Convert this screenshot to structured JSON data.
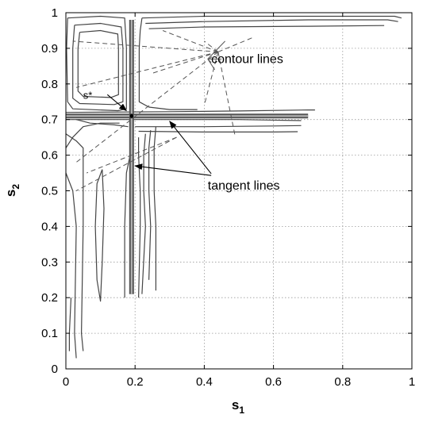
{
  "chart_data": {
    "type": "line",
    "title": "",
    "xlabel": "s",
    "xlabel_sub": "1",
    "ylabel": "s",
    "ylabel_sub": "2",
    "xlim": [
      0,
      1
    ],
    "ylim": [
      0,
      1
    ],
    "grid": true,
    "x_ticks": [
      0,
      0.2,
      0.4,
      0.6,
      0.8,
      1
    ],
    "x_tick_labels": [
      "0",
      "0.2",
      "0.4",
      "0.6",
      "0.8",
      "1"
    ],
    "y_ticks": [
      0,
      0.1,
      0.2,
      0.3,
      0.4,
      0.5,
      0.6,
      0.7,
      0.8,
      0.9,
      1
    ],
    "y_tick_labels": [
      "0",
      "0.1",
      "0.2",
      "0.3",
      "0.4",
      "0.5",
      "0.6",
      "0.7",
      "0.8",
      "0.9",
      "1"
    ],
    "minimum_point": {
      "label": "s*",
      "x": 0.19,
      "y": 0.71
    },
    "tangent_lines": [
      {
        "orientation": "vertical",
        "x": 0.19,
        "y_range": [
          0.21,
          0.98
        ]
      },
      {
        "orientation": "horizontal",
        "y": 0.71,
        "x_range": [
          0.0,
          0.7
        ]
      }
    ],
    "contour_lines": [
      {
        "points": [
          [
            0.22,
            0.985
          ],
          [
            0.4,
            0.99
          ],
          [
            0.7,
            0.99
          ],
          [
            0.95,
            0.99
          ],
          [
            0.97,
            0.985
          ]
        ]
      },
      {
        "points": [
          [
            0.23,
            0.97
          ],
          [
            0.4,
            0.975
          ],
          [
            0.7,
            0.98
          ],
          [
            0.93,
            0.98
          ],
          [
            0.96,
            0.975
          ]
        ]
      },
      {
        "points": [
          [
            0.24,
            0.955
          ],
          [
            0.4,
            0.96
          ],
          [
            0.7,
            0.962
          ],
          [
            0.92,
            0.964
          ]
        ]
      },
      {
        "points": [
          [
            0.0,
            0.72
          ],
          [
            0.3,
            0.722
          ],
          [
            0.5,
            0.724
          ],
          [
            0.7,
            0.727
          ],
          [
            0.72,
            0.727
          ]
        ]
      },
      {
        "points": [
          [
            0.0,
            0.7
          ],
          [
            0.3,
            0.7
          ],
          [
            0.5,
            0.7
          ],
          [
            0.68,
            0.697
          ]
        ]
      },
      {
        "points": [
          [
            0.2,
            0.68
          ],
          [
            0.4,
            0.68
          ],
          [
            0.6,
            0.682
          ],
          [
            0.68,
            0.683
          ]
        ]
      },
      {
        "points": [
          [
            0.21,
            0.667
          ],
          [
            0.4,
            0.665
          ],
          [
            0.6,
            0.665
          ],
          [
            0.67,
            0.666
          ]
        ]
      },
      {
        "points": [
          [
            0.005,
            0.985
          ],
          [
            0.1,
            0.99
          ],
          [
            0.17,
            0.985
          ],
          [
            0.175,
            0.9
          ],
          [
            0.175,
            0.73
          ],
          [
            0.15,
            0.725
          ],
          [
            0.02,
            0.73
          ],
          [
            0.005,
            0.75
          ],
          [
            0.002,
            0.9
          ],
          [
            0.005,
            0.985
          ]
        ]
      },
      {
        "points": [
          [
            0.025,
            0.965
          ],
          [
            0.1,
            0.97
          ],
          [
            0.16,
            0.96
          ],
          [
            0.165,
            0.9
          ],
          [
            0.165,
            0.75
          ],
          [
            0.14,
            0.742
          ],
          [
            0.04,
            0.745
          ],
          [
            0.02,
            0.76
          ],
          [
            0.02,
            0.9
          ],
          [
            0.025,
            0.965
          ]
        ]
      },
      {
        "points": [
          [
            0.04,
            0.945
          ],
          [
            0.1,
            0.95
          ],
          [
            0.15,
            0.94
          ],
          [
            0.152,
            0.9
          ],
          [
            0.152,
            0.77
          ],
          [
            0.13,
            0.762
          ],
          [
            0.05,
            0.765
          ],
          [
            0.035,
            0.78
          ],
          [
            0.035,
            0.9
          ],
          [
            0.04,
            0.945
          ]
        ]
      },
      {
        "points": [
          [
            0.22,
            0.985
          ],
          [
            0.215,
            0.95
          ],
          [
            0.212,
            0.9
          ],
          [
            0.212,
            0.75
          ],
          [
            0.24,
            0.735
          ],
          [
            0.3,
            0.728
          ],
          [
            0.38,
            0.728
          ]
        ]
      },
      {
        "points": [
          [
            0.0,
            0.66
          ],
          [
            0.03,
            0.64
          ],
          [
            0.05,
            0.62
          ],
          [
            0.05,
            0.4
          ],
          [
            0.045,
            0.1
          ],
          [
            0.05,
            0.05
          ]
        ]
      },
      {
        "points": [
          [
            0.0,
            0.55
          ],
          [
            0.02,
            0.5
          ],
          [
            0.03,
            0.4
          ],
          [
            0.025,
            0.1
          ],
          [
            0.03,
            0.03
          ]
        ]
      },
      {
        "points": [
          [
            0.015,
            0.2
          ],
          [
            0.01,
            0.1
          ],
          [
            0.01,
            0.05
          ]
        ]
      },
      {
        "points": [
          [
            0.105,
            0.56
          ],
          [
            0.11,
            0.45
          ],
          [
            0.105,
            0.3
          ],
          [
            0.1,
            0.19
          ],
          [
            0.09,
            0.25
          ],
          [
            0.085,
            0.4
          ],
          [
            0.09,
            0.52
          ],
          [
            0.105,
            0.56
          ]
        ]
      },
      {
        "points": [
          [
            0.19,
            0.62
          ],
          [
            0.175,
            0.55
          ],
          [
            0.17,
            0.4
          ],
          [
            0.17,
            0.2
          ]
        ]
      },
      {
        "points": [
          [
            0.21,
            0.65
          ],
          [
            0.21,
            0.6
          ],
          [
            0.215,
            0.5
          ],
          [
            0.215,
            0.4
          ],
          [
            0.21,
            0.2
          ]
        ]
      },
      {
        "points": [
          [
            0.23,
            0.66
          ],
          [
            0.225,
            0.6
          ],
          [
            0.225,
            0.5
          ],
          [
            0.23,
            0.4
          ],
          [
            0.22,
            0.21
          ]
        ]
      },
      {
        "points": [
          [
            0.245,
            0.67
          ],
          [
            0.24,
            0.62
          ],
          [
            0.24,
            0.5
          ],
          [
            0.245,
            0.4
          ],
          [
            0.24,
            0.25
          ]
        ]
      },
      {
        "points": [
          [
            0.26,
            0.68
          ],
          [
            0.255,
            0.62
          ],
          [
            0.255,
            0.5
          ],
          [
            0.26,
            0.4
          ],
          [
            0.26,
            0.22
          ]
        ]
      },
      {
        "points": [
          [
            0.155,
            0.69
          ],
          [
            0.1,
            0.69
          ],
          [
            0.05,
            0.68
          ],
          [
            0.02,
            0.65
          ],
          [
            0.0,
            0.62
          ]
        ]
      },
      {
        "points": [
          [
            0.03,
            0.7
          ],
          [
            0.07,
            0.69
          ],
          [
            0.14,
            0.685
          ],
          [
            0.18,
            0.68
          ]
        ]
      }
    ],
    "leader_lines": [
      {
        "style": "dashed",
        "points": [
          [
            0.44,
            0.89
          ],
          [
            0.02,
            0.92
          ]
        ]
      },
      {
        "style": "dashed",
        "points": [
          [
            0.44,
            0.89
          ],
          [
            0.28,
            0.95
          ]
        ]
      },
      {
        "style": "dashed",
        "points": [
          [
            0.44,
            0.89
          ],
          [
            0.25,
            0.83
          ]
        ]
      },
      {
        "style": "dashed",
        "points": [
          [
            0.44,
            0.89
          ],
          [
            0.03,
            0.79
          ]
        ]
      },
      {
        "style": "dashed",
        "points": [
          [
            0.44,
            0.89
          ],
          [
            0.03,
            0.58
          ]
        ]
      },
      {
        "style": "dashed",
        "points": [
          [
            0.44,
            0.89
          ],
          [
            0.4,
            0.92
          ]
        ]
      },
      {
        "style": "dashed",
        "points": [
          [
            0.44,
            0.89
          ],
          [
            0.54,
            0.93
          ]
        ]
      },
      {
        "style": "dashed",
        "points": [
          [
            0.44,
            0.89
          ],
          [
            0.49,
            0.65
          ]
        ]
      },
      {
        "style": "dashed",
        "points": [
          [
            0.44,
            0.89
          ],
          [
            0.4,
            0.74
          ]
        ]
      },
      {
        "style": "dashed",
        "points": [
          [
            0.32,
            0.65
          ],
          [
            0.03,
            0.5
          ]
        ]
      },
      {
        "style": "dashed",
        "points": [
          [
            0.32,
            0.65
          ],
          [
            0.06,
            0.55
          ]
        ]
      },
      {
        "style": "solid",
        "points": [
          [
            0.41,
            0.87
          ],
          [
            0.46,
            0.92
          ]
        ]
      },
      {
        "style": "solid",
        "points": [
          [
            0.41,
            0.87
          ],
          [
            0.45,
            0.87
          ]
        ]
      },
      {
        "style": "solid",
        "points": [
          [
            0.41,
            0.87
          ],
          [
            0.43,
            0.84
          ]
        ]
      },
      {
        "style": "solid",
        "points": [
          [
            0.41,
            0.87
          ],
          [
            0.42,
            0.86
          ]
        ]
      }
    ],
    "arrows": [
      {
        "from": [
          0.12,
          0.77
        ],
        "to": [
          0.175,
          0.725
        ]
      },
      {
        "from": [
          0.42,
          0.548
        ],
        "to": [
          0.3,
          0.695
        ]
      },
      {
        "from": [
          0.42,
          0.543
        ],
        "to": [
          0.2,
          0.57
        ]
      }
    ],
    "annotations": [
      {
        "text": "contour lines",
        "x": 0.42,
        "y": 0.87
      },
      {
        "text": "s*",
        "x": 0.05,
        "y": 0.77
      },
      {
        "text": "tangent lines",
        "x": 0.41,
        "y": 0.515
      }
    ]
  }
}
